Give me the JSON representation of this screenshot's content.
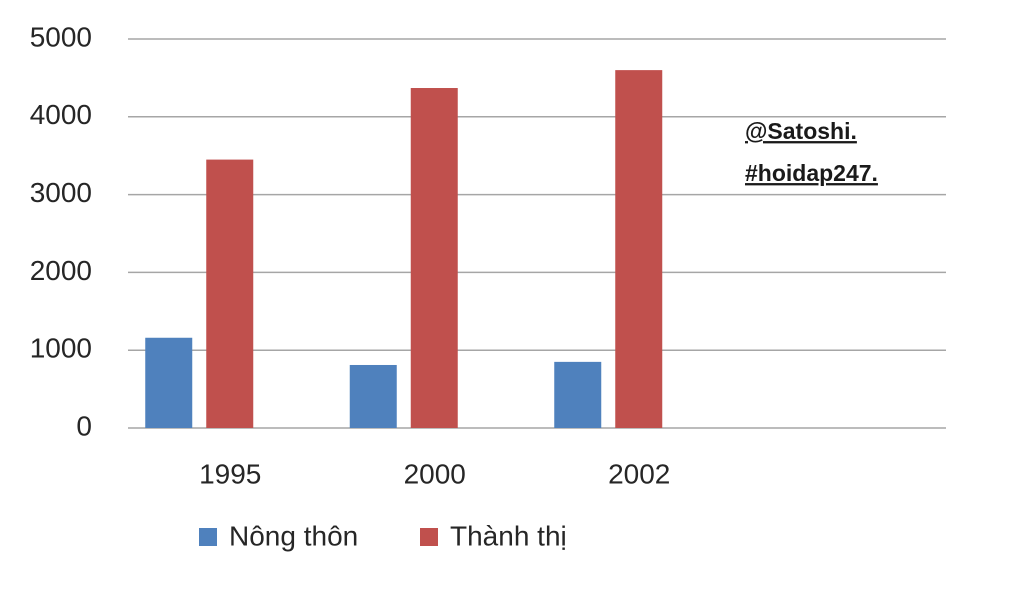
{
  "chart_data": {
    "type": "bar",
    "categories": [
      "1995",
      "2000",
      "2002",
      null
    ],
    "series": [
      {
        "name": "Nông thôn",
        "color": "#4f81bd",
        "values": [
          1160,
          810,
          850,
          null
        ]
      },
      {
        "name": "Thành thị",
        "color": "#c0504d",
        "values": [
          3450,
          4370,
          4600,
          null
        ]
      }
    ],
    "ylim": [
      0,
      5000
    ],
    "yticks": [
      0,
      1000,
      2000,
      3000,
      4000,
      5000
    ],
    "grid": true,
    "legend": "bottom",
    "annotations": [
      "@Satoshi.",
      "#hoidap247."
    ]
  }
}
